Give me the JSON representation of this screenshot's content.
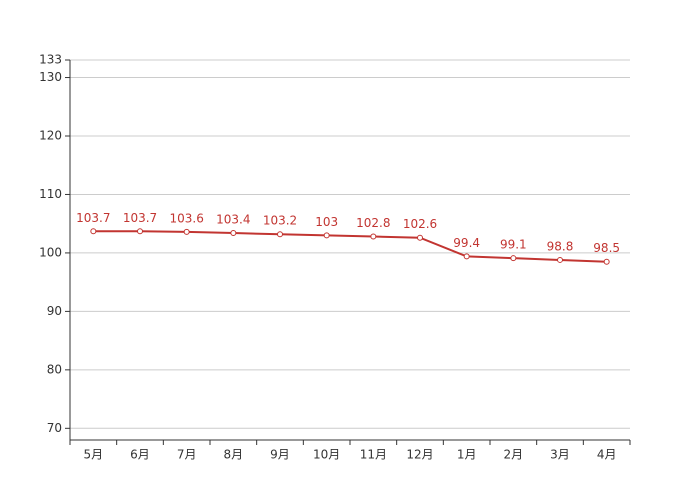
{
  "chart_data": {
    "type": "line",
    "categories": [
      "5月",
      "6月",
      "7月",
      "8月",
      "9月",
      "10月",
      "11月",
      "12月",
      "1月",
      "2月",
      "3月",
      "4月"
    ],
    "series": [
      {
        "color": "#c23531",
        "values": [
          103.7,
          103.7,
          103.6,
          103.4,
          103.2,
          103,
          102.8,
          102.6,
          99.4,
          99.1,
          98.8,
          98.5
        ]
      }
    ],
    "ylim": [
      68,
      133
    ],
    "yticks": [
      70,
      80,
      90,
      100,
      110,
      120,
      130,
      133
    ],
    "grid": true
  }
}
